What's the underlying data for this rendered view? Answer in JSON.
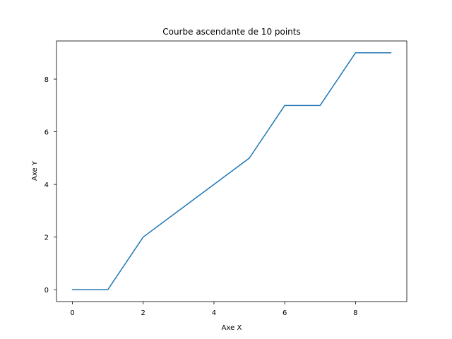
{
  "chart_data": {
    "type": "line",
    "title": "Courbe ascendante de 10 points",
    "xlabel": "Axe X",
    "ylabel": "Axe Y",
    "x": [
      0,
      1,
      2,
      3,
      4,
      5,
      6,
      7,
      8,
      9
    ],
    "series": [
      {
        "values": [
          0,
          0,
          2,
          3,
          4,
          5,
          7,
          7,
          9,
          9
        ],
        "color": "#1f77b4"
      }
    ],
    "xlim": [
      -0.45,
      9.45
    ],
    "ylim": [
      -0.45,
      9.45
    ],
    "xticks": [
      0,
      2,
      4,
      6,
      8
    ],
    "yticks": [
      0,
      2,
      4,
      6,
      8
    ],
    "xtick_labels": [
      "0",
      "2",
      "4",
      "6",
      "8"
    ],
    "ytick_labels": [
      "0",
      "2",
      "4",
      "6",
      "8"
    ],
    "grid": false,
    "legend": "none"
  }
}
